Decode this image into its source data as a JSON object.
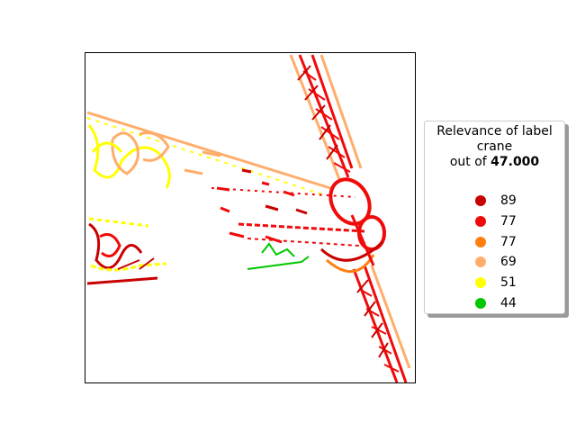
{
  "legend": {
    "title_line1": "Relevance of label",
    "title_line2": "crane",
    "title_prefix": "out of ",
    "title_value": "47.000",
    "entries": [
      {
        "label": "89",
        "color": "#c80000"
      },
      {
        "label": "77",
        "color": "#f00a0a"
      },
      {
        "label": "77",
        "color": "#ff7f0e"
      },
      {
        "label": "69",
        "color": "#ffad6b"
      },
      {
        "label": "51",
        "color": "#ffff00"
      },
      {
        "label": "44",
        "color": "#00c800"
      }
    ]
  },
  "image": {
    "description_icon": "crane-edge-heatmap",
    "colors": {
      "dark_red": "#c80000",
      "red": "#f00a0a",
      "orange": "#ff7f0e",
      "peach": "#ffad6b",
      "yellow": "#ffff00",
      "green": "#00c800"
    }
  }
}
